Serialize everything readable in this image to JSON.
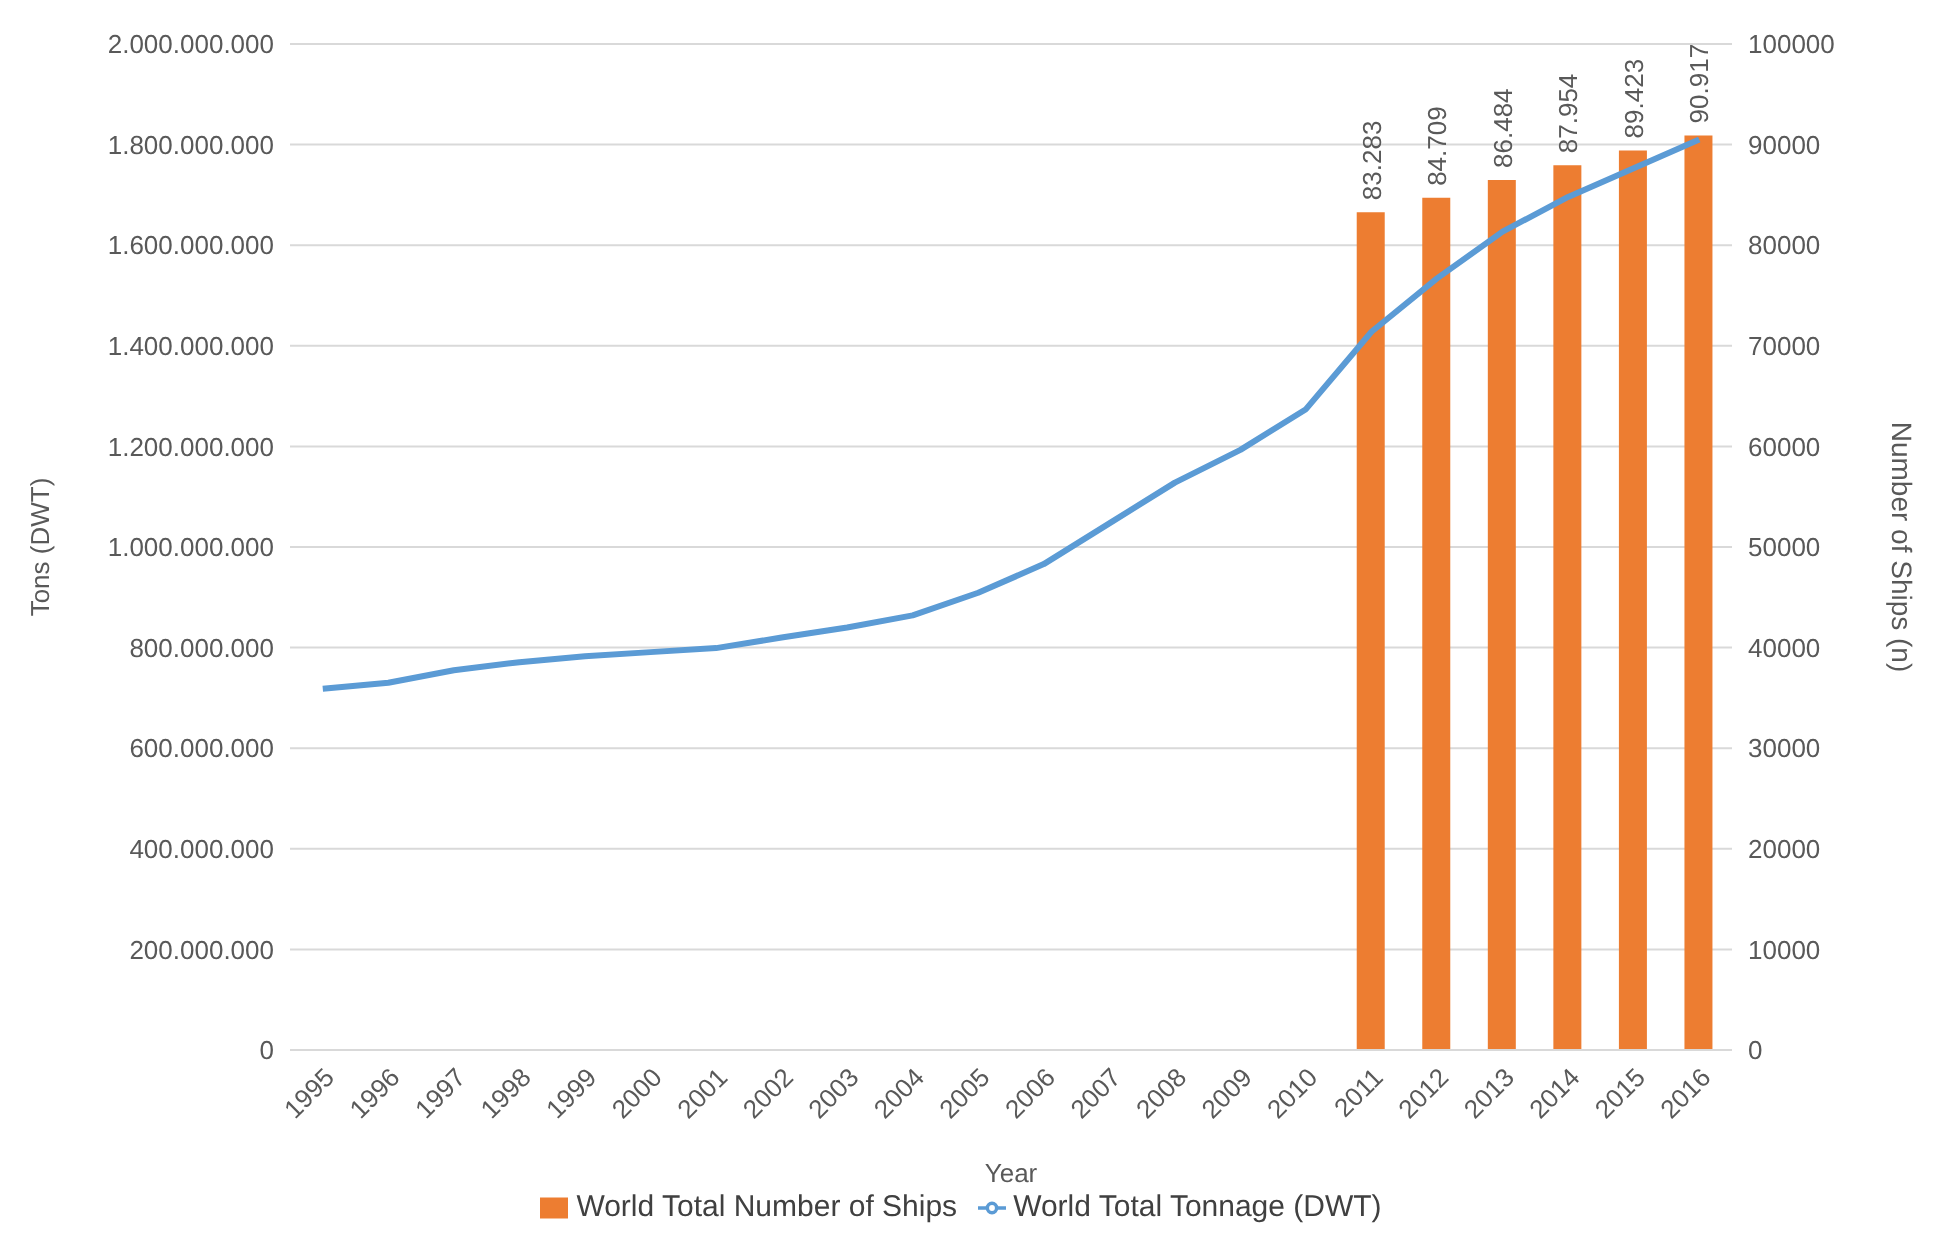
{
  "chart_data": {
    "type": "bar",
    "categories": [
      "1995",
      "1996",
      "1997",
      "1998",
      "1999",
      "2000",
      "2001",
      "2002",
      "2003",
      "2004",
      "2005",
      "2006",
      "2007",
      "2008",
      "2009",
      "2010",
      "2011",
      "2012",
      "2013",
      "2014",
      "2015",
      "2016"
    ],
    "series": [
      {
        "name": "World Total Number of Ships",
        "axis": "y2",
        "color": "#ed7d31",
        "values": [
          null,
          null,
          null,
          null,
          null,
          null,
          null,
          null,
          null,
          null,
          null,
          null,
          null,
          null,
          null,
          null,
          83283,
          84709,
          86484,
          87954,
          89423,
          90917
        ],
        "value_labels": [
          null,
          null,
          null,
          null,
          null,
          null,
          null,
          null,
          null,
          null,
          null,
          null,
          null,
          null,
          null,
          null,
          "83.283",
          "84.709",
          "86.484",
          "87.954",
          "89.423",
          "90.917"
        ]
      },
      {
        "name": "World Total Tonnage (DWT)",
        "type": "line",
        "color": "#5b9bd5",
        "marker": "none",
        "values": [
          718000000,
          730000000,
          755000000,
          771000000,
          783000000,
          791000000,
          799000000,
          820000000,
          840000000,
          864000000,
          909000000,
          966000000,
          1047000000,
          1128000000,
          1193000000,
          1274000000,
          1428000000,
          1534000000,
          1627000000,
          1696000000,
          1753000000,
          1810000000
        ]
      }
    ],
    "xlabel": "Year",
    "ylabel": "Tons (DWT)",
    "y2label": "Number of Ships (n)",
    "ylim": [
      0,
      2000000000
    ],
    "yticks": [
      0,
      {
        "value": 200000000,
        "label": "200.000.000"
      },
      {
        "value": 400000000,
        "label": "400.000.000"
      },
      {
        "value": 600000000,
        "label": "600.000.000"
      },
      {
        "value": 800000000,
        "label": "800.000.000"
      },
      {
        "value": 1000000000,
        "label": "1.000.000.000"
      },
      {
        "value": 1200000000,
        "label": "1.200.000.000"
      },
      {
        "value": 1400000000,
        "label": "1.400.000.000"
      },
      {
        "value": 1600000000,
        "label": "1.600.000.000"
      },
      {
        "value": 1800000000,
        "label": "1.800.000.000"
      },
      {
        "value": 2000000000,
        "label": "2.000.000.000"
      }
    ],
    "y2lim": [
      0,
      100000
    ],
    "y2ticks": [
      0,
      10000,
      20000,
      30000,
      40000,
      50000,
      60000,
      70000,
      80000,
      90000,
      100000
    ],
    "grid": "y",
    "legend": "bottom"
  }
}
